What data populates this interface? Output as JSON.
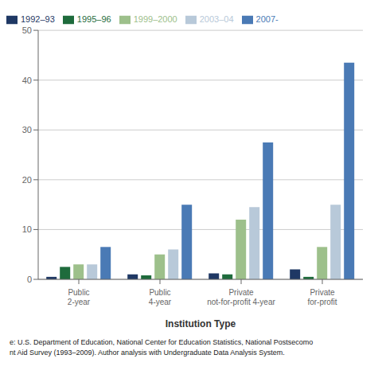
{
  "chart_data": {
    "type": "bar",
    "categories": [
      "Public\n2-year",
      "Public\n4-year",
      "Private\nnot-for-profit 4-year",
      "Private\nfor-profit"
    ],
    "series": [
      {
        "name": "1992–93",
        "color": "#1f3864",
        "values": [
          0.5,
          1.0,
          1.2,
          2.0
        ]
      },
      {
        "name": "1995–96",
        "color": "#1e6b3c",
        "values": [
          2.5,
          0.8,
          1.0,
          0.5
        ]
      },
      {
        "name": "1999–2000",
        "color": "#9dc08b",
        "values": [
          3.0,
          5.0,
          12.0,
          6.5
        ]
      },
      {
        "name": "2003–04",
        "color": "#b8c9d9",
        "values": [
          3.0,
          6.0,
          14.5,
          15.0
        ]
      },
      {
        "name": "2007-",
        "color": "#4a7ab5",
        "values": [
          6.5,
          15.0,
          27.5,
          43.5
        ]
      }
    ],
    "xlabel": "Institution Type",
    "ylim": [
      0,
      50
    ],
    "yticks": [
      0,
      10,
      20,
      30,
      40,
      50
    ],
    "grid": true,
    "legend": "top",
    "annotations": [
      "e: U.S. Department of Education, National Center for Education Statistics, National Postsecomo\nnt Aid Survey (1993–2009). Author analysis with Undergraduate Data Analysis System."
    ]
  }
}
